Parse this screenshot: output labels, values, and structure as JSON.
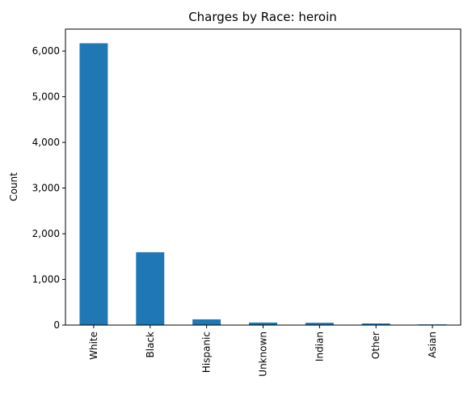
{
  "chart_data": {
    "type": "bar",
    "title": "Charges by Race: heroin",
    "xlabel": "",
    "ylabel": "Count",
    "categories": [
      "White",
      "Black",
      "Hispanic",
      "Unknown",
      "Indian",
      "Other",
      "Asian"
    ],
    "values": [
      6170,
      1595,
      125,
      55,
      50,
      35,
      15
    ],
    "ylim": [
      0,
      6480
    ],
    "yticks": [
      0,
      1000,
      2000,
      3000,
      4000,
      5000,
      6000
    ],
    "ytick_labels": [
      "0",
      "1,000",
      "2,000",
      "3,000",
      "4,000",
      "5,000",
      "6,000"
    ],
    "bar_color": "#1f77b4",
    "grid": false,
    "legend": "none"
  }
}
